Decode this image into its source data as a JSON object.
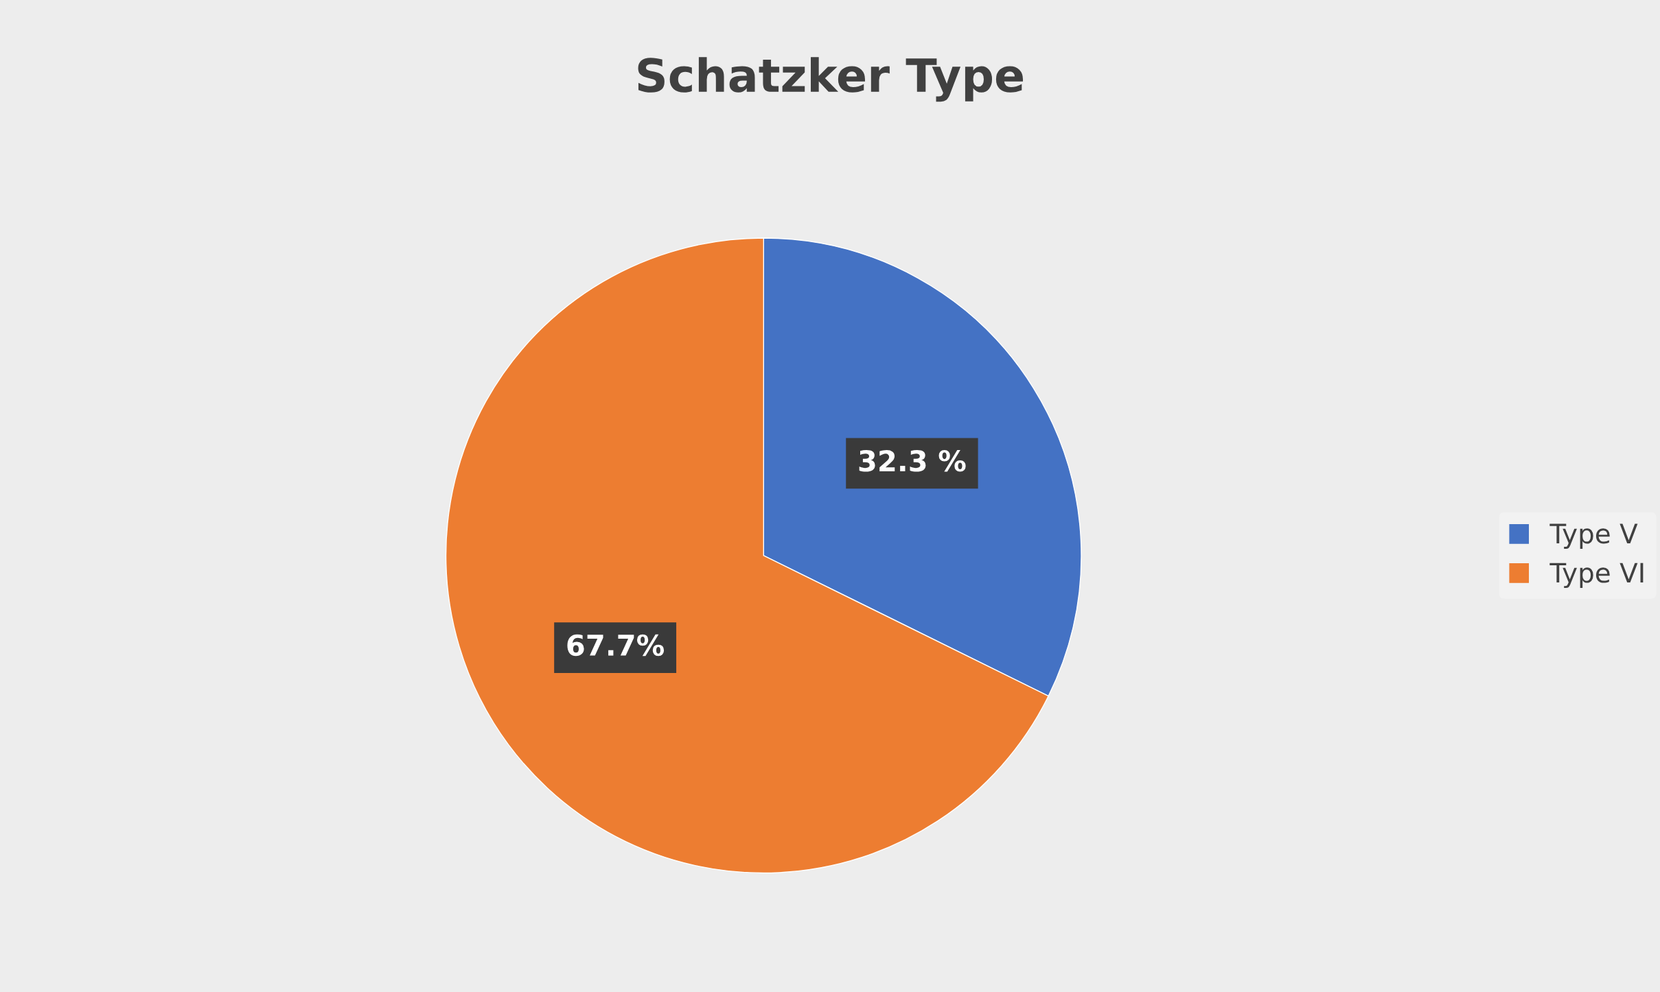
{
  "chart_data": {
    "type": "pie",
    "title": "Schatzker Type",
    "categories": [
      "Type V",
      "Type VI"
    ],
    "values": [
      32.3,
      67.7
    ],
    "colors": [
      "#4472c4",
      "#ed7d31"
    ],
    "value_labels": [
      "32.3 %",
      "67.7%"
    ],
    "legend": "right"
  }
}
